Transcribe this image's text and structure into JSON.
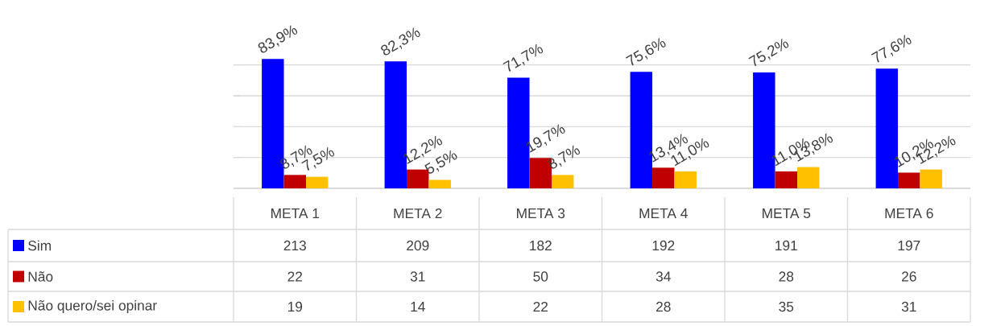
{
  "chart_data": {
    "type": "bar",
    "categories": [
      "META 1",
      "META 2",
      "META 3",
      "META 4",
      "META 5",
      "META 6"
    ],
    "series": [
      {
        "name": "Sim",
        "color": "#0000ff",
        "values": [
          83.9,
          82.3,
          71.7,
          75.6,
          75.2,
          77.6
        ],
        "value_labels": [
          "83,9%",
          "82,3%",
          "71,7%",
          "75,6%",
          "75,2%",
          "77,6%"
        ]
      },
      {
        "name": "Não",
        "color": "#c00000",
        "values": [
          8.7,
          12.2,
          19.7,
          13.4,
          11.0,
          10.2
        ],
        "value_labels": [
          "8,7%",
          "12,2%",
          "19,7%",
          "13,4%",
          "11,0%",
          "10,2%"
        ]
      },
      {
        "name": "Não quero/sei opinar",
        "color": "#ffc000",
        "values": [
          7.5,
          5.5,
          8.7,
          11.0,
          13.8,
          12.2
        ],
        "value_labels": [
          "7,5%",
          "5,5%",
          "8,7%",
          "11,0%",
          "13,8%",
          "12,2%"
        ]
      }
    ],
    "annotations": [
      "213",
      "209",
      "182",
      "192",
      "191",
      "197",
      "22",
      "31",
      "50",
      "34",
      "28",
      "26",
      "19",
      "14",
      "22",
      "28",
      "35",
      "31"
    ],
    "grid": "y",
    "legend": "bottom"
  }
}
